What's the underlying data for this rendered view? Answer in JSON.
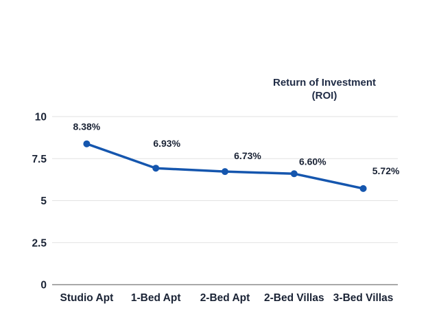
{
  "chart_data": {
    "type": "line",
    "title": "Return of Investment (ROI)",
    "title_lines": [
      "Return of Investment",
      "(ROI)"
    ],
    "categories": [
      "Studio Apt",
      "1-Bed Apt",
      "2-Bed Apt",
      "2-Bed Villas",
      "3-Bed Villas"
    ],
    "series": [
      {
        "name": "ROI",
        "values": [
          8.38,
          6.93,
          6.73,
          6.6,
          5.72
        ]
      }
    ],
    "point_labels": [
      "8.38%",
      "6.93%",
      "6.73%",
      "6.60%",
      "5.72%"
    ],
    "y_ticks": [
      0,
      2.5,
      5,
      7.5,
      10
    ],
    "y_tick_labels": [
      "0",
      "2.5",
      "5",
      "7.5",
      "10"
    ],
    "xlabel": "",
    "ylabel": "",
    "ylim": [
      0,
      10
    ],
    "grid": true,
    "legend_position": "none",
    "colors": {
      "line": "#1556ae",
      "marker": "#1556ae",
      "data_label": "#1a2335",
      "tick_label": "#1a2335",
      "title_text": "#1f2b45",
      "gridline": "#e2e2e2",
      "axis_line": "#8c8c8c",
      "background": "#ffffff"
    }
  }
}
